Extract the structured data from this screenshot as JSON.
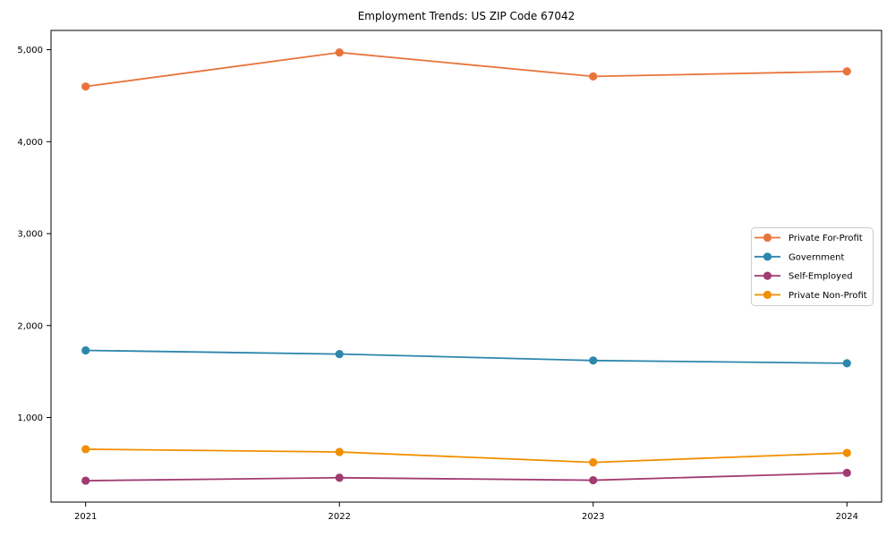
{
  "chart_data": {
    "type": "line",
    "title": "Employment Trends: US ZIP Code 67042",
    "xlabel": "",
    "ylabel": "",
    "categories": [
      "2021",
      "2022",
      "2023",
      "2024"
    ],
    "series": [
      {
        "name": "Private For-Profit",
        "color": "#E8743B",
        "values": [
          4600,
          4970,
          4710,
          4765
        ]
      },
      {
        "name": "Government",
        "color": "#2E86AB",
        "values": [
          1730,
          1690,
          1620,
          1590
        ]
      },
      {
        "name": "Self-Employed",
        "color": "#A23B72",
        "values": [
          313,
          345,
          318,
          398
        ]
      },
      {
        "name": "Private Non-Profit",
        "color": "#F18F01",
        "values": [
          655,
          625,
          512,
          615
        ]
      }
    ],
    "ylim": [
      80,
      5210
    ],
    "yticks": [
      1000,
      2000,
      3000,
      4000,
      5000
    ],
    "ytick_labels": [
      "1,000",
      "2,000",
      "3,000",
      "4,000",
      "5,000"
    ],
    "grid": false,
    "marker": "circle",
    "legend_position": "center right",
    "axis_color": "#000000",
    "legend_border_color": "#cccccc",
    "background_color": "#ffffff"
  }
}
